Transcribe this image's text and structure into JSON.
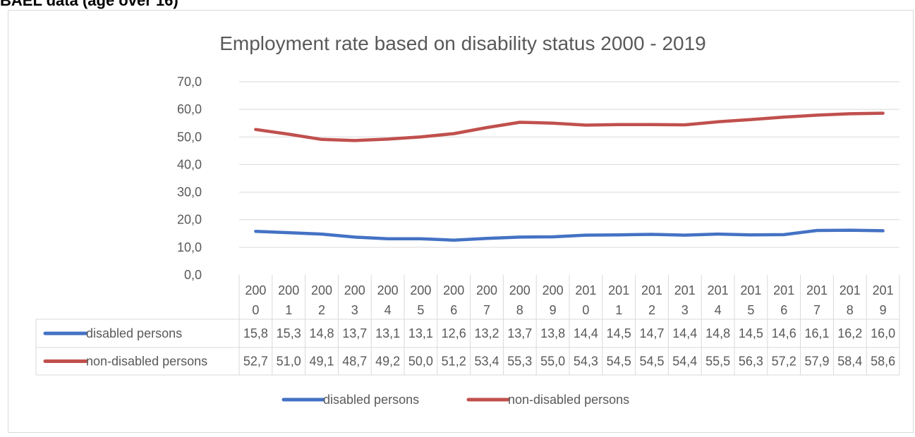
{
  "page": {
    "header": "BAEL data (age over 16)"
  },
  "chart_data": {
    "type": "line",
    "title": "Employment rate based on disability status 2000 - 2019",
    "categories": [
      [
        "200",
        "0"
      ],
      [
        "200",
        "1"
      ],
      [
        "200",
        "2"
      ],
      [
        "200",
        "3"
      ],
      [
        "200",
        "4"
      ],
      [
        "200",
        "5"
      ],
      [
        "200",
        "6"
      ],
      [
        "200",
        "7"
      ],
      [
        "200",
        "8"
      ],
      [
        "200",
        "9"
      ],
      [
        "201",
        "0"
      ],
      [
        "201",
        "1"
      ],
      [
        "201",
        "2"
      ],
      [
        "201",
        "3"
      ],
      [
        "201",
        "4"
      ],
      [
        "201",
        "5"
      ],
      [
        "201",
        "6"
      ],
      [
        "201",
        "7"
      ],
      [
        "201",
        "8"
      ],
      [
        "201",
        "9"
      ]
    ],
    "ylim": [
      0,
      70
    ],
    "yticks": [
      "0,0",
      "10,0",
      "20,0",
      "30,0",
      "40,0",
      "50,0",
      "60,0",
      "70,0"
    ],
    "grid": true,
    "legend_position": "bottom",
    "data_table": true,
    "series": [
      {
        "name": "disabled persons",
        "color": "#4472c4",
        "values": [
          15.8,
          15.3,
          14.8,
          13.7,
          13.1,
          13.1,
          12.6,
          13.2,
          13.7,
          13.8,
          14.4,
          14.5,
          14.7,
          14.4,
          14.8,
          14.5,
          14.6,
          16.1,
          16.2,
          16.0
        ],
        "labels": [
          "15,8",
          "15,3",
          "14,8",
          "13,7",
          "13,1",
          "13,1",
          "12,6",
          "13,2",
          "13,7",
          "13,8",
          "14,4",
          "14,5",
          "14,7",
          "14,4",
          "14,8",
          "14,5",
          "14,6",
          "16,1",
          "16,2",
          "16,0"
        ]
      },
      {
        "name": "non-disabled persons",
        "color": "#c0504d",
        "values": [
          52.7,
          51.0,
          49.1,
          48.7,
          49.2,
          50.0,
          51.2,
          53.4,
          55.3,
          55.0,
          54.3,
          54.5,
          54.5,
          54.4,
          55.5,
          56.3,
          57.2,
          57.9,
          58.4,
          58.6
        ],
        "labels": [
          "52,7",
          "51,0",
          "49,1",
          "48,7",
          "49,2",
          "50,0",
          "51,2",
          "53,4",
          "55,3",
          "55,0",
          "54,3",
          "54,5",
          "54,5",
          "54,4",
          "55,5",
          "56,3",
          "57,2",
          "57,9",
          "58,4",
          "58,6"
        ]
      }
    ]
  }
}
